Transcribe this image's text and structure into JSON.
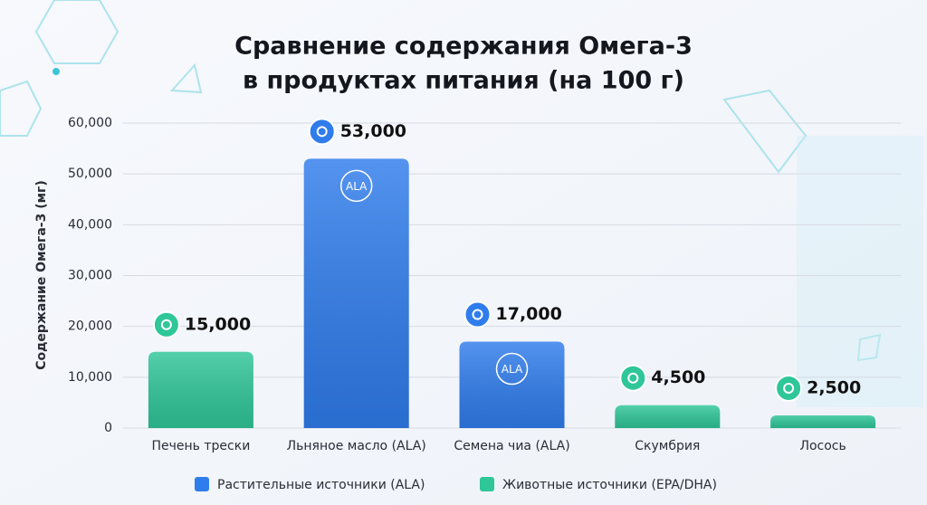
{
  "chart_data": {
    "type": "bar",
    "title": [
      "Сравнение содержания Омега-3",
      "в продуктах питания (на 100 г)"
    ],
    "y_label": "Содержание Омега-3 (мг)",
    "categories": [
      "Печень трески",
      "Льняное масло (ALA)",
      "Семена чиа (ALA)",
      "Скумбрия",
      "Лосось"
    ],
    "series": [
      {
        "name": "Растительные источники (ALA)",
        "color": "#2f7cec",
        "badge": "ALA",
        "values": [
          null,
          53000,
          17000,
          null,
          null
        ],
        "value_labels": [
          null,
          "53,000",
          "17,000",
          null,
          null
        ]
      },
      {
        "name": "Животные источники (EPA/DHA)",
        "color": "#2fc698",
        "values": [
          15000,
          null,
          null,
          4500,
          2500
        ],
        "value_labels": [
          "15,000",
          null,
          null,
          "4,500",
          "2,500"
        ]
      }
    ],
    "ylim": [
      0,
      60000
    ],
    "yticks": [
      0,
      {
        "value": 10000,
        "label": "10,000"
      },
      {
        "value": 20000,
        "label": "20,000"
      },
      {
        "value": 30000,
        "label": "30,000"
      },
      {
        "value": 40000,
        "label": "40,000"
      },
      {
        "value": 50000,
        "label": "50,000"
      },
      {
        "value": 60000,
        "label": "60,000"
      }
    ],
    "grid": true
  }
}
